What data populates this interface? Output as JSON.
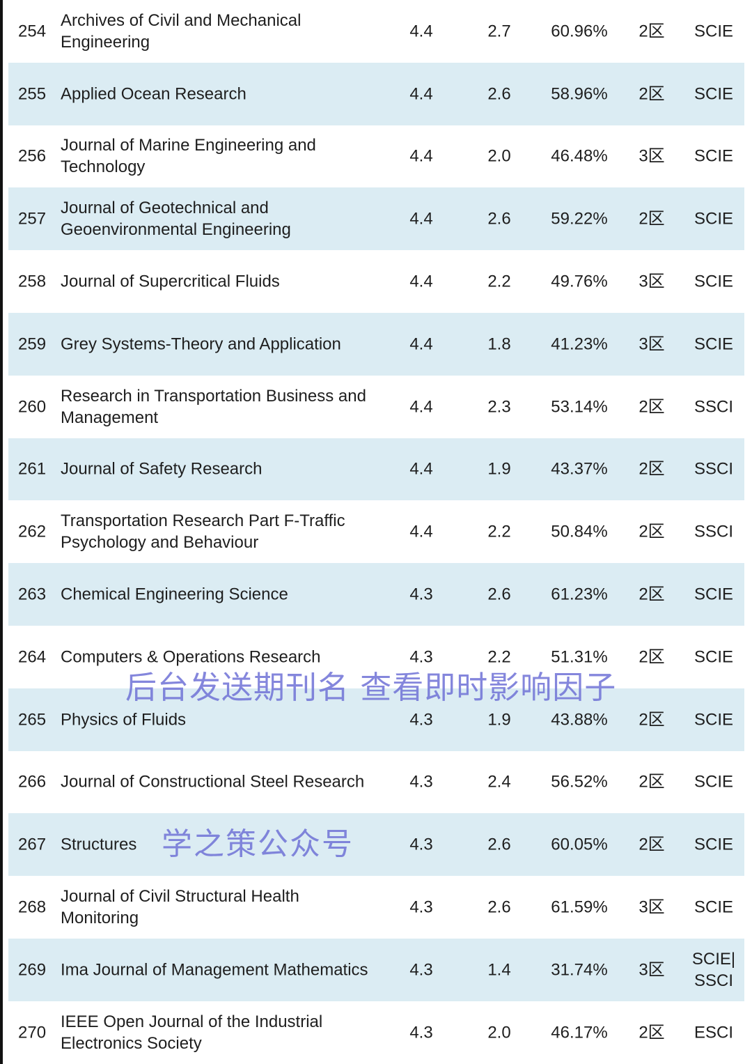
{
  "rows": [
    {
      "rank": "254",
      "name": "Archives of Civil and Mechanical Engineering",
      "if": "4.4",
      "v2": "2.7",
      "pct": "60.96%",
      "zone": "2区",
      "index": "SCIE"
    },
    {
      "rank": "255",
      "name": "Applied Ocean Research",
      "if": "4.4",
      "v2": "2.6",
      "pct": "58.96%",
      "zone": "2区",
      "index": "SCIE"
    },
    {
      "rank": "256",
      "name": "Journal of Marine Engineering and Technology",
      "if": "4.4",
      "v2": "2.0",
      "pct": "46.48%",
      "zone": "3区",
      "index": "SCIE"
    },
    {
      "rank": "257",
      "name": "Journal of Geotechnical and Geoenvironmental Engineering",
      "if": "4.4",
      "v2": "2.6",
      "pct": "59.22%",
      "zone": "2区",
      "index": "SCIE"
    },
    {
      "rank": "258",
      "name": "Journal of Supercritical Fluids",
      "if": "4.4",
      "v2": "2.2",
      "pct": "49.76%",
      "zone": "3区",
      "index": "SCIE"
    },
    {
      "rank": "259",
      "name": "Grey Systems-Theory and Application",
      "if": "4.4",
      "v2": "1.8",
      "pct": "41.23%",
      "zone": "3区",
      "index": "SCIE"
    },
    {
      "rank": "260",
      "name": "Research in Transportation Business and Management",
      "if": "4.4",
      "v2": "2.3",
      "pct": "53.14%",
      "zone": "2区",
      "index": "SSCI"
    },
    {
      "rank": "261",
      "name": "Journal of Safety Research",
      "if": "4.4",
      "v2": "1.9",
      "pct": "43.37%",
      "zone": "2区",
      "index": "SSCI"
    },
    {
      "rank": "262",
      "name": "Transportation Research Part F-Traffic Psychology and Behaviour",
      "if": "4.4",
      "v2": "2.2",
      "pct": "50.84%",
      "zone": "2区",
      "index": "SSCI"
    },
    {
      "rank": "263",
      "name": "Chemical Engineering Science",
      "if": "4.3",
      "v2": "2.6",
      "pct": "61.23%",
      "zone": "2区",
      "index": "SCIE"
    },
    {
      "rank": "264",
      "name": "Computers & Operations Research",
      "if": "4.3",
      "v2": "2.2",
      "pct": "51.31%",
      "zone": "2区",
      "index": "SCIE"
    },
    {
      "rank": "265",
      "name": "Physics of Fluids",
      "if": "4.3",
      "v2": "1.9",
      "pct": "43.88%",
      "zone": "2区",
      "index": "SCIE"
    },
    {
      "rank": "266",
      "name": "Journal of Constructional Steel Research",
      "if": "4.3",
      "v2": "2.4",
      "pct": "56.52%",
      "zone": "2区",
      "index": "SCIE"
    },
    {
      "rank": "267",
      "name": "Structures",
      "if": "4.3",
      "v2": "2.6",
      "pct": "60.05%",
      "zone": "2区",
      "index": "SCIE"
    },
    {
      "rank": "268",
      "name": "Journal of Civil Structural Health Monitoring",
      "if": "4.3",
      "v2": "2.6",
      "pct": "61.59%",
      "zone": "3区",
      "index": "SCIE"
    },
    {
      "rank": "269",
      "name": "Ima Journal of Management Mathematics",
      "if": "4.3",
      "v2": "1.4",
      "pct": "31.74%",
      "zone": "3区",
      "index": "SCIE| SSCI"
    },
    {
      "rank": "270",
      "name": "IEEE Open Journal of the Industrial Electronics Society",
      "if": "4.3",
      "v2": "2.0",
      "pct": "46.17%",
      "zone": "2区",
      "index": "ESCI"
    }
  ],
  "watermarks": {
    "top": "学之策公众号",
    "bottom": "后台发送期刊名 查看即时影响因子"
  },
  "colors": {
    "alt_row": "#dbecf3",
    "watermark": "#6f72d6"
  }
}
